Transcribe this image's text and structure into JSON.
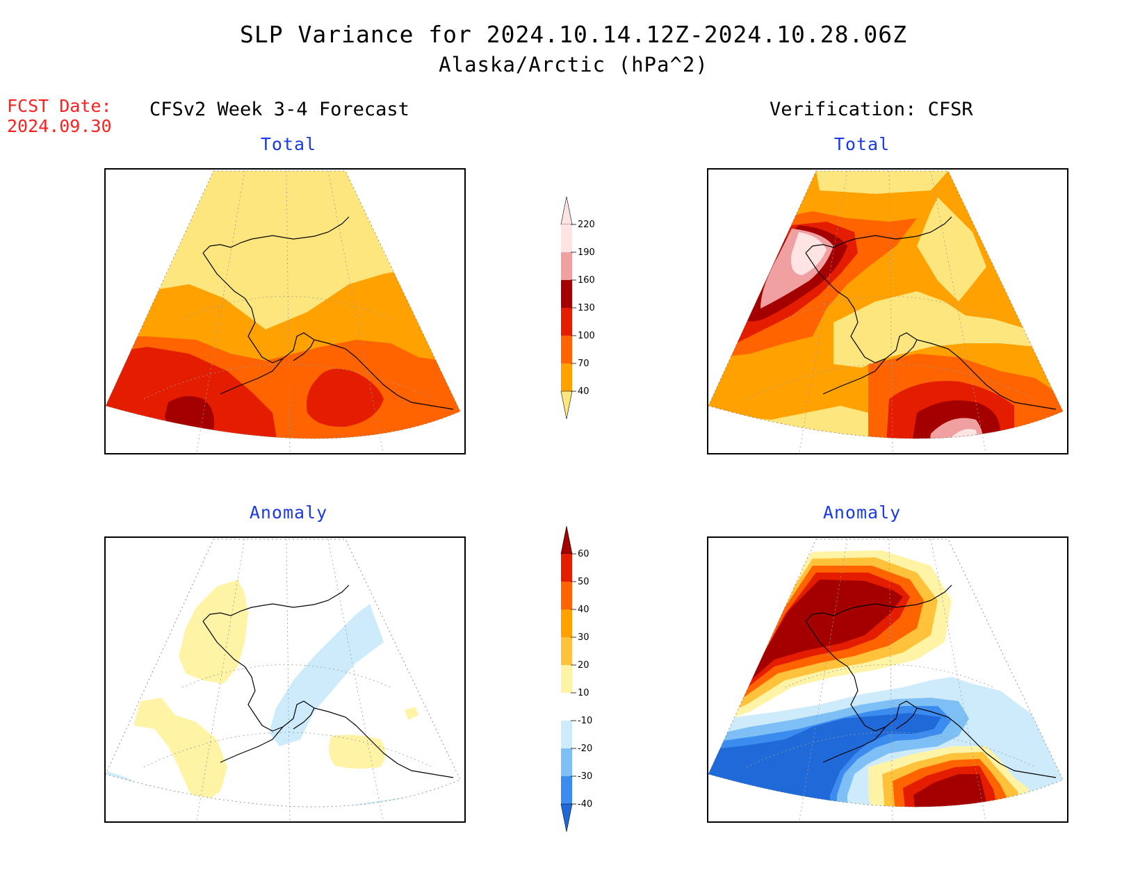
{
  "header": {
    "title": "SLP Variance for 2024.10.14.12Z-2024.10.28.06Z",
    "subtitle": "Alaska/Arctic (hPa^2)"
  },
  "fcst": {
    "label": "FCST Date:",
    "date": "2024.09.30"
  },
  "columns": {
    "left": "CFSv2 Week 3-4 Forecast",
    "right": "Verification: CFSR"
  },
  "panels": {
    "forecast_total": {
      "title": "Total"
    },
    "verification_total": {
      "title": "Total"
    },
    "forecast_anomaly": {
      "title": "Anomaly"
    },
    "verification_anomaly": {
      "title": "Anomaly"
    }
  },
  "colorbars": {
    "total": {
      "levels": [
        "40",
        "70",
        "100",
        "130",
        "160",
        "190",
        "220"
      ],
      "colors": [
        "#fee67e",
        "#ffa100",
        "#ff6400",
        "#e41d00",
        "#a50000",
        "#f0a0a0",
        "#ffe4e4"
      ]
    },
    "anomaly": {
      "levels": [
        "-40",
        "-30",
        "-20",
        "-10",
        "10",
        "20",
        "30",
        "40",
        "50",
        "60"
      ],
      "colors": [
        "#1f6ad8",
        "#3c8cf0",
        "#7ec0f5",
        "#cdebfb",
        "#ffffff",
        "#fff3a6",
        "#ffc23a",
        "#ffa100",
        "#ff6400",
        "#e41d00",
        "#a50000"
      ]
    }
  }
}
